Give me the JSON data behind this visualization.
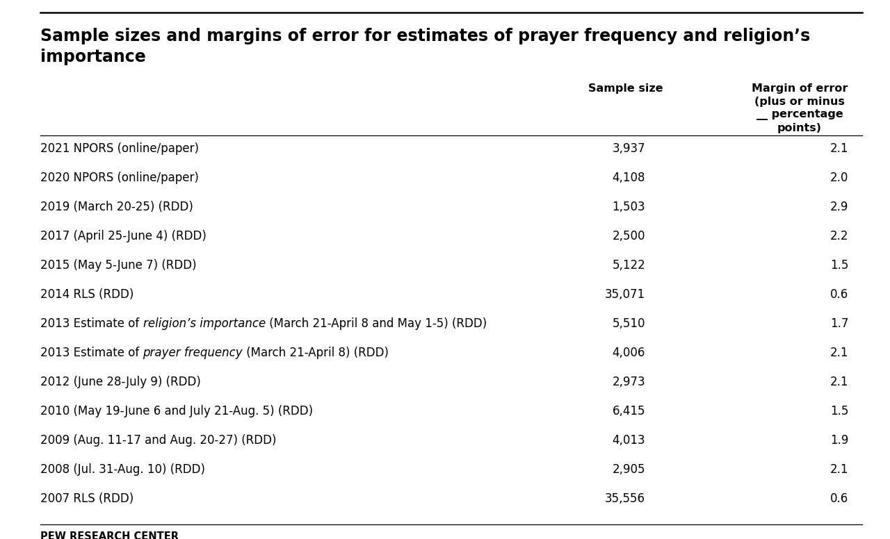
{
  "title_line1": "Sample sizes and margins of error for estimates of prayer frequency and religion’s",
  "title_line2": "importance",
  "col_header_sample": "Sample size",
  "col_header_moe": "Margin of error\n(plus or minus\n__ percentage\npoints)",
  "rows": [
    {
      "label": "2021 NPORS (online/paper)",
      "italic_part": null,
      "sample": "3,937",
      "moe": "2.1"
    },
    {
      "label": "2020 NPORS (online/paper)",
      "italic_part": null,
      "sample": "4,108",
      "moe": "2.0"
    },
    {
      "label": "2019 (March 20-25) (RDD)",
      "italic_part": null,
      "sample": "1,503",
      "moe": "2.9"
    },
    {
      "label": "2017 (April 25-June 4) (RDD)",
      "italic_part": null,
      "sample": "2,500",
      "moe": "2.2"
    },
    {
      "label": "2015 (May 5-June 7) (RDD)",
      "italic_part": null,
      "sample": "5,122",
      "moe": "1.5"
    },
    {
      "label": "2014 RLS (RDD)",
      "italic_part": null,
      "sample": "35,071",
      "moe": "0.6"
    },
    {
      "label": "2013 Estimate of religion’s importance (March 21-April 8 and May 1-5) (RDD)",
      "italic_part": "religion’s importance",
      "sample": "5,510",
      "moe": "1.7"
    },
    {
      "label": "2013 Estimate of prayer frequency (March 21-April 8) (RDD)",
      "italic_part": "prayer frequency",
      "sample": "4,006",
      "moe": "2.1"
    },
    {
      "label": "2012 (June 28-July 9) (RDD)",
      "italic_part": null,
      "sample": "2,973",
      "moe": "2.1"
    },
    {
      "label": "2010 (May 19-June 6 and July 21-Aug. 5) (RDD)",
      "italic_part": null,
      "sample": "6,415",
      "moe": "1.5"
    },
    {
      "label": "2009 (Aug. 11-17 and Aug. 20-27) (RDD)",
      "italic_part": null,
      "sample": "4,013",
      "moe": "1.9"
    },
    {
      "label": "2008 (Jul. 31-Aug. 10) (RDD)",
      "italic_part": null,
      "sample": "2,905",
      "moe": "2.1"
    },
    {
      "label": "2007 RLS (RDD)",
      "italic_part": null,
      "sample": "35,556",
      "moe": "0.6"
    }
  ],
  "footer": "PEW RESEARCH CENTER",
  "bg_color": "#ffffff",
  "text_color": "#000000",
  "title_fontsize": 17,
  "header_fontsize": 11.5,
  "row_fontsize": 12,
  "footer_fontsize": 10.5
}
